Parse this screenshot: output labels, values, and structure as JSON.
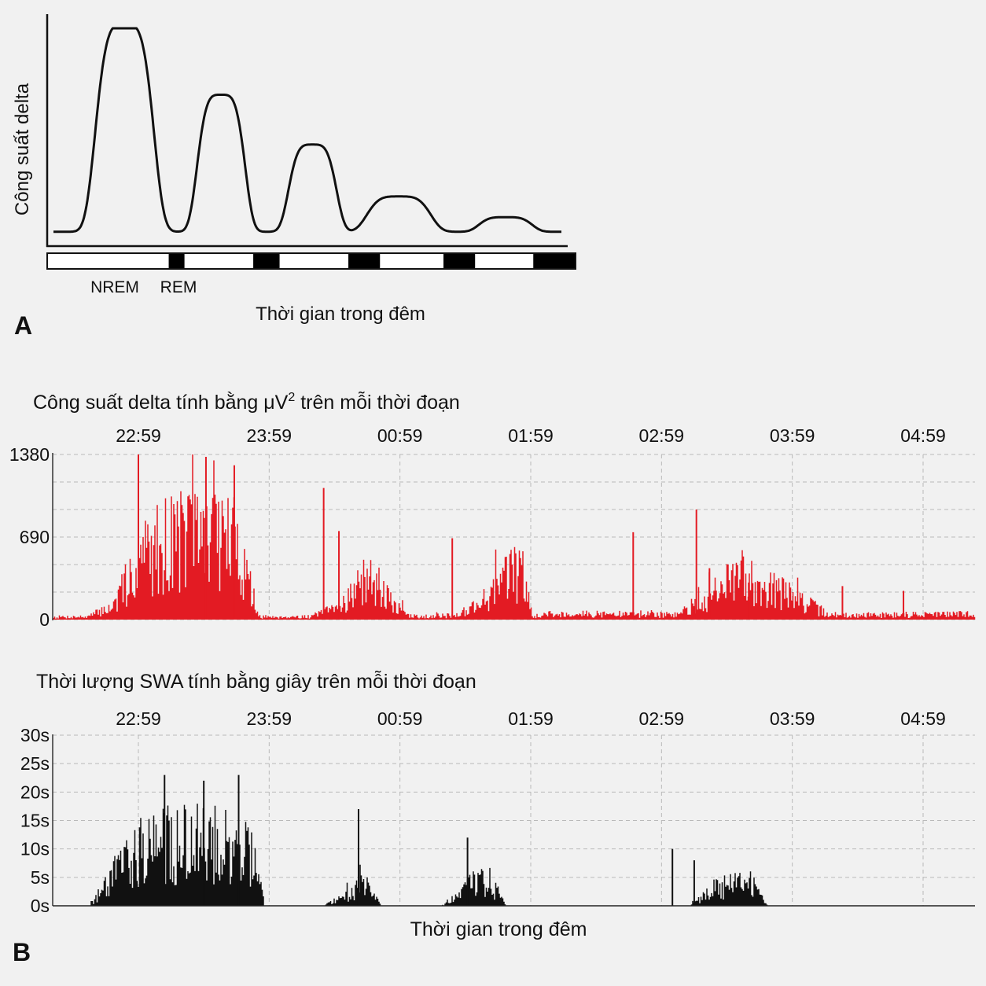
{
  "panel_a": {
    "letter": "A",
    "chart_data": {
      "type": "line",
      "ylabel": "Công suất delta",
      "xlabel": "Thời gian trong đêm",
      "stage_labels": [
        "NREM",
        "REM"
      ],
      "line_color": "#111111",
      "cycles": [
        {
          "peak_position": 0.14,
          "relative_peak": 1.0
        },
        {
          "peak_position": 0.33,
          "relative_peak": 0.66
        },
        {
          "peak_position": 0.51,
          "relative_peak": 0.42
        },
        {
          "peak_position": 0.68,
          "relative_peak": 0.17
        },
        {
          "peak_position": 0.89,
          "relative_peak": 0.07
        }
      ],
      "hypnogram": [
        {
          "stage": "NREM",
          "from": 0.0,
          "to": 0.23
        },
        {
          "stage": "REM",
          "from": 0.23,
          "to": 0.26
        },
        {
          "stage": "NREM",
          "from": 0.26,
          "to": 0.39
        },
        {
          "stage": "REM",
          "from": 0.39,
          "to": 0.44
        },
        {
          "stage": "NREM",
          "from": 0.44,
          "to": 0.57
        },
        {
          "stage": "REM",
          "from": 0.57,
          "to": 0.63
        },
        {
          "stage": "NREM",
          "from": 0.63,
          "to": 0.75
        },
        {
          "stage": "REM",
          "from": 0.75,
          "to": 0.81
        },
        {
          "stage": "NREM",
          "from": 0.81,
          "to": 0.92
        },
        {
          "stage": "REM",
          "from": 0.92,
          "to": 1.0
        }
      ]
    }
  },
  "panel_b": {
    "letter": "B",
    "xlabel": "Thời gian trong đêm",
    "chart_data": [
      {
        "type": "bar",
        "title_prefix": "Công suất delta tính bằng ",
        "title_unit": "μV",
        "title_sup": "2",
        "title_suffix": " trên mỗi thời đoạn",
        "x_ticks": [
          "22:59",
          "23:59",
          "00:59",
          "01:59",
          "02:59",
          "03:59",
          "04:59"
        ],
        "y_ticks": [
          "1380",
          "690",
          "0"
        ],
        "ylim": [
          0,
          1380
        ],
        "color": "#e31b23",
        "envelope_clock_hours": [
          22.0,
          22.6,
          22.8,
          23.0,
          23.2,
          23.4,
          23.6,
          23.75,
          23.9,
          24.3,
          24.5,
          24.7,
          24.9,
          25.05,
          25.4,
          25.6,
          25.9,
          26.0,
          26.3,
          26.8,
          27.1,
          27.3,
          27.6,
          28.3,
          28.6,
          29.0,
          29.6,
          30.2
        ],
        "envelope_values": [
          25,
          30,
          150,
          650,
          830,
          900,
          900,
          780,
          30,
          30,
          120,
          400,
          210,
          35,
          40,
          180,
          560,
          45,
          60,
          55,
          50,
          200,
          470,
          35,
          50,
          55,
          60,
          40
        ],
        "spikes": [
          {
            "time": "22:59",
            "value": 1380
          },
          {
            "time": "23:30",
            "value": 1360
          },
          {
            "time": "23:43",
            "value": 1290
          },
          {
            "time": "00:24",
            "value": 1100
          },
          {
            "time": "00:31",
            "value": 740
          },
          {
            "time": "01:23",
            "value": 680
          },
          {
            "time": "02:46",
            "value": 730
          },
          {
            "time": "03:15",
            "value": 920
          },
          {
            "time": "03:21",
            "value": 430
          },
          {
            "time": "03:39",
            "value": 310
          },
          {
            "time": "04:22",
            "value": 280
          },
          {
            "time": "04:50",
            "value": 240
          }
        ]
      },
      {
        "type": "bar",
        "title": "Thời lượng SWA tính bằng giây trên mỗi thời đoạn",
        "x_ticks": [
          "22:59",
          "23:59",
          "00:59",
          "01:59",
          "02:59",
          "03:59",
          "04:59"
        ],
        "y_ticks": [
          "30s",
          "25s",
          "20s",
          "15s",
          "10s",
          "5s",
          "0s"
        ],
        "ylim": [
          0,
          30
        ],
        "color": "#111111",
        "envelope_clock_hours": [
          22.0,
          22.6,
          22.7,
          22.8,
          23.0,
          23.3,
          23.6,
          23.85,
          23.95,
          24.4,
          24.6,
          24.7,
          24.85,
          25.3,
          25.55,
          25.65,
          25.8,
          27.2,
          27.4,
          27.55,
          27.7,
          27.8,
          28.0,
          30.2
        ],
        "envelope_values": [
          0,
          0,
          3,
          9,
          13,
          14,
          14,
          12,
          0,
          0,
          3,
          5,
          0,
          0,
          5,
          6,
          0,
          0,
          4,
          5,
          4,
          0,
          0,
          0
        ],
        "spikes": [
          {
            "time": "23:11",
            "value": 23
          },
          {
            "time": "23:29",
            "value": 22
          },
          {
            "time": "23:45",
            "value": 23
          },
          {
            "time": "00:40",
            "value": 17
          },
          {
            "time": "01:30",
            "value": 12
          },
          {
            "time": "03:04",
            "value": 10
          },
          {
            "time": "03:14",
            "value": 8
          }
        ]
      }
    ]
  }
}
